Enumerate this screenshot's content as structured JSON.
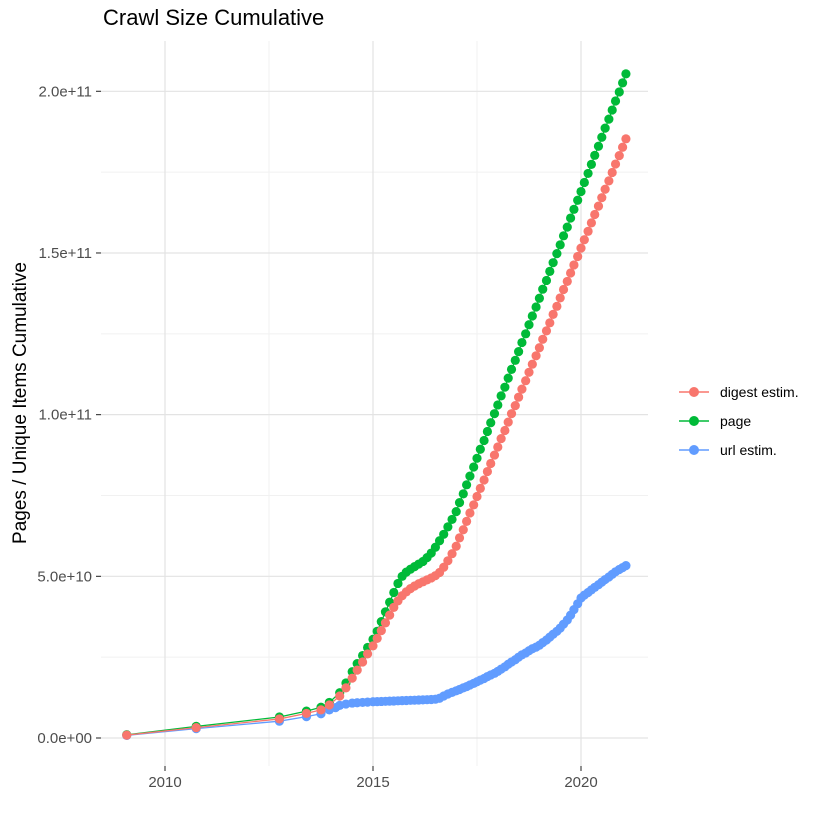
{
  "chart_data": {
    "type": "scatter",
    "title": "Crawl Size Cumulative",
    "xlabel": "",
    "ylabel": "Pages / Unique Items Cumulative",
    "values_unit": "1e9",
    "grid": true,
    "legend_position": "right",
    "x_ticks": [
      {
        "v": 2010,
        "label": "2010"
      },
      {
        "v": 2015,
        "label": "2015"
      },
      {
        "v": 2020,
        "label": "2020"
      }
    ],
    "y_ticks": [
      {
        "v": 0,
        "label": "0.0e+00"
      },
      {
        "v": 50,
        "label": "5.0e+10"
      },
      {
        "v": 100,
        "label": "1.0e+11"
      },
      {
        "v": 150,
        "label": "1.5e+11"
      },
      {
        "v": 200,
        "label": "2.0e+11"
      }
    ],
    "xlim": [
      2008.5,
      2021.7
    ],
    "ylim_e9": [
      -8,
      216
    ],
    "series": [
      {
        "name": "digest estim.",
        "color": "#F8766D",
        "points": [
          [
            2009.08,
            0.9
          ],
          [
            2010.75,
            3.2
          ],
          [
            2012.75,
            5.9
          ],
          [
            2013.4,
            7.6
          ],
          [
            2013.75,
            8.7
          ],
          [
            2013.95,
            10.2
          ],
          [
            2014.2,
            13.0
          ],
          [
            2014.35,
            15.5
          ],
          [
            2014.5,
            18.5
          ],
          [
            2014.62,
            21.0
          ],
          [
            2014.75,
            23.5
          ],
          [
            2014.87,
            26.0
          ],
          [
            2015.0,
            28.5
          ],
          [
            2015.1,
            30.8
          ],
          [
            2015.2,
            33.2
          ],
          [
            2015.3,
            35.6
          ],
          [
            2015.4,
            38.0
          ],
          [
            2015.5,
            40.4
          ],
          [
            2015.6,
            42.4
          ],
          [
            2015.7,
            44.0
          ],
          [
            2015.8,
            45.2
          ],
          [
            2015.9,
            46.2
          ],
          [
            2016.0,
            47.0
          ],
          [
            2016.1,
            47.7
          ],
          [
            2016.2,
            48.3
          ],
          [
            2016.3,
            48.9
          ],
          [
            2016.4,
            49.5
          ],
          [
            2016.5,
            50.2
          ],
          [
            2016.6,
            51.2
          ],
          [
            2016.7,
            52.8
          ],
          [
            2016.8,
            54.8
          ],
          [
            2016.9,
            57.0
          ],
          [
            2017.0,
            59.3
          ],
          [
            2017.08,
            61.9
          ],
          [
            2017.17,
            64.4
          ],
          [
            2017.25,
            67.0
          ],
          [
            2017.33,
            69.6
          ],
          [
            2017.42,
            72.1
          ],
          [
            2017.5,
            74.7
          ],
          [
            2017.58,
            77.2
          ],
          [
            2017.67,
            79.8
          ],
          [
            2017.75,
            82.4
          ],
          [
            2017.83,
            84.9
          ],
          [
            2017.92,
            87.5
          ],
          [
            2018.0,
            90.0
          ],
          [
            2018.08,
            92.6
          ],
          [
            2018.17,
            95.1
          ],
          [
            2018.25,
            97.7
          ],
          [
            2018.33,
            100.3
          ],
          [
            2018.42,
            102.8
          ],
          [
            2018.5,
            105.4
          ],
          [
            2018.58,
            107.9
          ],
          [
            2018.67,
            110.5
          ],
          [
            2018.75,
            113.1
          ],
          [
            2018.83,
            115.6
          ],
          [
            2018.92,
            118.2
          ],
          [
            2019.0,
            120.7
          ],
          [
            2019.08,
            123.3
          ],
          [
            2019.17,
            125.9
          ],
          [
            2019.25,
            128.4
          ],
          [
            2019.33,
            131.0
          ],
          [
            2019.42,
            133.5
          ],
          [
            2019.5,
            136.1
          ],
          [
            2019.58,
            138.7
          ],
          [
            2019.67,
            141.2
          ],
          [
            2019.75,
            143.8
          ],
          [
            2019.83,
            146.3
          ],
          [
            2019.92,
            148.9
          ],
          [
            2020.0,
            151.5
          ],
          [
            2020.08,
            154.1
          ],
          [
            2020.17,
            156.7
          ],
          [
            2020.25,
            159.3
          ],
          [
            2020.33,
            161.9
          ],
          [
            2020.42,
            164.5
          ],
          [
            2020.5,
            167.1
          ],
          [
            2020.58,
            169.7
          ],
          [
            2020.67,
            172.3
          ],
          [
            2020.75,
            174.9
          ],
          [
            2020.83,
            177.5
          ],
          [
            2020.92,
            180.1
          ],
          [
            2021.0,
            182.7
          ],
          [
            2021.08,
            185.3
          ]
        ]
      },
      {
        "name": "page",
        "color": "#00BA38",
        "points": [
          [
            2009.08,
            1.0
          ],
          [
            2010.75,
            3.6
          ],
          [
            2012.75,
            6.5
          ],
          [
            2013.4,
            8.3
          ],
          [
            2013.75,
            9.5
          ],
          [
            2013.95,
            11.0
          ],
          [
            2014.2,
            14.0
          ],
          [
            2014.35,
            17.0
          ],
          [
            2014.5,
            20.5
          ],
          [
            2014.62,
            23.0
          ],
          [
            2014.75,
            25.5
          ],
          [
            2014.87,
            28.0
          ],
          [
            2015.0,
            30.5
          ],
          [
            2015.1,
            33.0
          ],
          [
            2015.2,
            36.0
          ],
          [
            2015.3,
            39.0
          ],
          [
            2015.4,
            42.0
          ],
          [
            2015.5,
            45.0
          ],
          [
            2015.6,
            47.8
          ],
          [
            2015.7,
            50.0
          ],
          [
            2015.8,
            51.3
          ],
          [
            2015.9,
            52.2
          ],
          [
            2016.0,
            53.0
          ],
          [
            2016.1,
            53.8
          ],
          [
            2016.2,
            54.6
          ],
          [
            2016.3,
            55.8
          ],
          [
            2016.4,
            57.2
          ],
          [
            2016.5,
            59.0
          ],
          [
            2016.6,
            61.0
          ],
          [
            2016.7,
            63.0
          ],
          [
            2016.8,
            65.3
          ],
          [
            2016.9,
            67.6
          ],
          [
            2017.0,
            70.0
          ],
          [
            2017.08,
            72.8
          ],
          [
            2017.17,
            75.5
          ],
          [
            2017.25,
            78.3
          ],
          [
            2017.33,
            81.0
          ],
          [
            2017.42,
            83.8
          ],
          [
            2017.5,
            86.5
          ],
          [
            2017.58,
            89.3
          ],
          [
            2017.67,
            92.0
          ],
          [
            2017.75,
            94.8
          ],
          [
            2017.83,
            97.5
          ],
          [
            2017.92,
            100.3
          ],
          [
            2018.0,
            103.0
          ],
          [
            2018.08,
            105.8
          ],
          [
            2018.17,
            108.5
          ],
          [
            2018.25,
            111.3
          ],
          [
            2018.33,
            114.0
          ],
          [
            2018.42,
            116.8
          ],
          [
            2018.5,
            119.5
          ],
          [
            2018.58,
            122.3
          ],
          [
            2018.67,
            125.0
          ],
          [
            2018.75,
            127.8
          ],
          [
            2018.83,
            130.5
          ],
          [
            2018.92,
            133.3
          ],
          [
            2019.0,
            136.0
          ],
          [
            2019.08,
            138.8
          ],
          [
            2019.17,
            141.5
          ],
          [
            2019.25,
            144.3
          ],
          [
            2019.33,
            147.0
          ],
          [
            2019.42,
            149.8
          ],
          [
            2019.5,
            152.5
          ],
          [
            2019.58,
            155.3
          ],
          [
            2019.67,
            158.0
          ],
          [
            2019.75,
            160.8
          ],
          [
            2019.83,
            163.5
          ],
          [
            2019.92,
            166.3
          ],
          [
            2020.0,
            169.0
          ],
          [
            2020.08,
            171.8
          ],
          [
            2020.17,
            174.6
          ],
          [
            2020.25,
            177.4
          ],
          [
            2020.33,
            180.2
          ],
          [
            2020.42,
            183.0
          ],
          [
            2020.5,
            185.8
          ],
          [
            2020.58,
            188.6
          ],
          [
            2020.67,
            191.4
          ],
          [
            2020.75,
            194.2
          ],
          [
            2020.83,
            197.0
          ],
          [
            2020.92,
            199.8
          ],
          [
            2021.0,
            202.6
          ],
          [
            2021.08,
            205.4
          ]
        ]
      },
      {
        "name": "url estim.",
        "color": "#619CFF",
        "points": [
          [
            2009.08,
            0.8
          ],
          [
            2010.75,
            2.9
          ],
          [
            2012.75,
            5.2
          ],
          [
            2013.4,
            6.6
          ],
          [
            2013.75,
            7.5
          ],
          [
            2013.95,
            8.7
          ],
          [
            2014.1,
            9.4
          ],
          [
            2014.2,
            10.1
          ],
          [
            2014.35,
            10.5
          ],
          [
            2014.5,
            10.8
          ],
          [
            2014.62,
            10.9
          ],
          [
            2014.75,
            11.0
          ],
          [
            2014.87,
            11.1
          ],
          [
            2015.0,
            11.2
          ],
          [
            2015.1,
            11.25
          ],
          [
            2015.2,
            11.3
          ],
          [
            2015.3,
            11.35
          ],
          [
            2015.4,
            11.4
          ],
          [
            2015.5,
            11.45
          ],
          [
            2015.6,
            11.5
          ],
          [
            2015.7,
            11.55
          ],
          [
            2015.8,
            11.6
          ],
          [
            2015.9,
            11.65
          ],
          [
            2016.0,
            11.7
          ],
          [
            2016.1,
            11.75
          ],
          [
            2016.2,
            11.8
          ],
          [
            2016.3,
            11.85
          ],
          [
            2016.4,
            11.9
          ],
          [
            2016.5,
            12.0
          ],
          [
            2016.6,
            12.3
          ],
          [
            2016.7,
            13.0
          ],
          [
            2016.8,
            13.6
          ],
          [
            2016.9,
            14.1
          ],
          [
            2017.0,
            14.6
          ],
          [
            2017.08,
            15.0
          ],
          [
            2017.17,
            15.5
          ],
          [
            2017.25,
            15.9
          ],
          [
            2017.33,
            16.4
          ],
          [
            2017.42,
            16.9
          ],
          [
            2017.5,
            17.4
          ],
          [
            2017.58,
            17.9
          ],
          [
            2017.67,
            18.4
          ],
          [
            2017.75,
            19.0
          ],
          [
            2017.83,
            19.5
          ],
          [
            2017.92,
            20.0
          ],
          [
            2018.0,
            20.6
          ],
          [
            2018.08,
            21.3
          ],
          [
            2018.17,
            22.0
          ],
          [
            2018.25,
            22.8
          ],
          [
            2018.33,
            23.5
          ],
          [
            2018.42,
            24.2
          ],
          [
            2018.5,
            25.0
          ],
          [
            2018.58,
            25.7
          ],
          [
            2018.67,
            26.3
          ],
          [
            2018.75,
            27.0
          ],
          [
            2018.83,
            27.6
          ],
          [
            2018.92,
            28.1
          ],
          [
            2019.0,
            28.7
          ],
          [
            2019.08,
            29.5
          ],
          [
            2019.17,
            30.3
          ],
          [
            2019.25,
            31.2
          ],
          [
            2019.33,
            32.1
          ],
          [
            2019.42,
            33.0
          ],
          [
            2019.5,
            34.0
          ],
          [
            2019.58,
            35.2
          ],
          [
            2019.67,
            36.5
          ],
          [
            2019.75,
            38.0
          ],
          [
            2019.83,
            39.7
          ],
          [
            2019.92,
            41.5
          ],
          [
            2020.0,
            43.3
          ],
          [
            2020.08,
            44.2
          ],
          [
            2020.17,
            45.0
          ],
          [
            2020.25,
            45.8
          ],
          [
            2020.33,
            46.6
          ],
          [
            2020.42,
            47.4
          ],
          [
            2020.5,
            48.2
          ],
          [
            2020.58,
            49.0
          ],
          [
            2020.67,
            49.8
          ],
          [
            2020.75,
            50.6
          ],
          [
            2020.83,
            51.4
          ],
          [
            2020.92,
            52.1
          ],
          [
            2021.0,
            52.7
          ],
          [
            2021.08,
            53.3
          ]
        ]
      }
    ],
    "style": {
      "major_grid_color": "#E3E3E3",
      "minor_grid_color": "#F1F1F1",
      "tick_color": "#333333",
      "point_radius": 4.6
    }
  }
}
